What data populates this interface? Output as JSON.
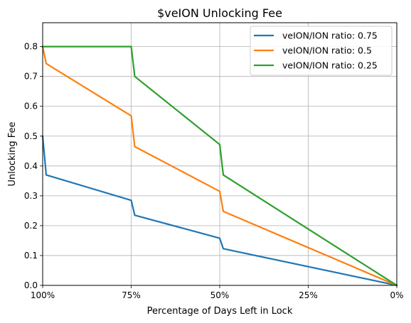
{
  "chart_data": {
    "type": "line",
    "title": "$veION Unlocking Fee",
    "xlabel": "Percentage of Days Left in Lock",
    "ylabel": "Unlocking Fee",
    "x_axis": {
      "range": [
        100,
        0
      ],
      "ticks": [
        100,
        75,
        50,
        25,
        0
      ],
      "tick_labels": [
        "100%",
        "75%",
        "50%",
        "25%",
        "0%"
      ]
    },
    "y_axis": {
      "range": [
        0,
        0.88
      ],
      "ticks": [
        0.0,
        0.1,
        0.2,
        0.3,
        0.4,
        0.5,
        0.6,
        0.7,
        0.8
      ],
      "tick_labels": [
        "0.0",
        "0.1",
        "0.2",
        "0.3",
        "0.4",
        "0.5",
        "0.6",
        "0.7",
        "0.8"
      ]
    },
    "grid": true,
    "legend_position": "top-right",
    "series": [
      {
        "name": "veION/ION ratio: 0.75",
        "color": "#1f77b4",
        "points": [
          [
            100,
            0.5
          ],
          [
            99,
            0.37
          ],
          [
            75,
            0.285
          ],
          [
            74,
            0.235
          ],
          [
            50,
            0.158
          ],
          [
            49,
            0.123
          ],
          [
            0,
            0.0
          ]
        ]
      },
      {
        "name": "veION/ION ratio: 0.5",
        "color": "#ff7f0e",
        "points": [
          [
            100,
            0.8
          ],
          [
            99,
            0.743
          ],
          [
            75,
            0.568
          ],
          [
            74,
            0.465
          ],
          [
            50,
            0.315
          ],
          [
            49,
            0.248
          ],
          [
            0,
            0.0
          ]
        ]
      },
      {
        "name": "veION/ION ratio: 0.25",
        "color": "#2ca02c",
        "points": [
          [
            100,
            0.8
          ],
          [
            75,
            0.8
          ],
          [
            74,
            0.7
          ],
          [
            50,
            0.472
          ],
          [
            49,
            0.37
          ],
          [
            0,
            0.0
          ]
        ]
      }
    ]
  }
}
